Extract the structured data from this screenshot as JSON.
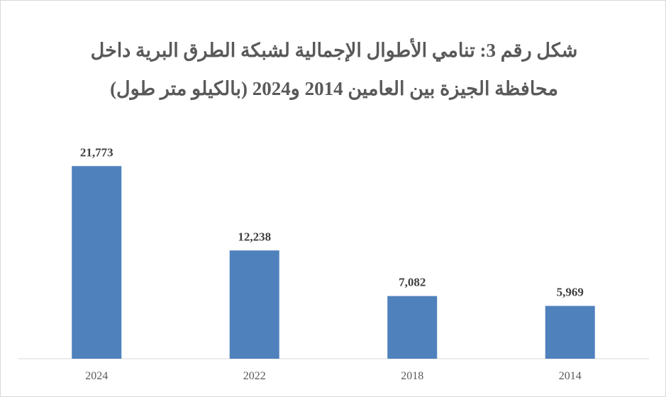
{
  "chart_data": {
    "type": "bar",
    "title": [
      "شكل رقم 3: تنامي الأطوال الإجمالية لشبكة الطرق البرية داخل",
      "محافظة الجيزة بين العامين 2014 و2024 (بالكيلو متر طول)"
    ],
    "categories": [
      "2024",
      "2022",
      "2018",
      "2014"
    ],
    "values": [
      21773,
      12238,
      7082,
      5969
    ],
    "value_labels": [
      "21,773",
      "12,238",
      "7,082",
      "5,969"
    ],
    "color": "#4f81bd",
    "ylim": [
      0,
      25000
    ]
  }
}
